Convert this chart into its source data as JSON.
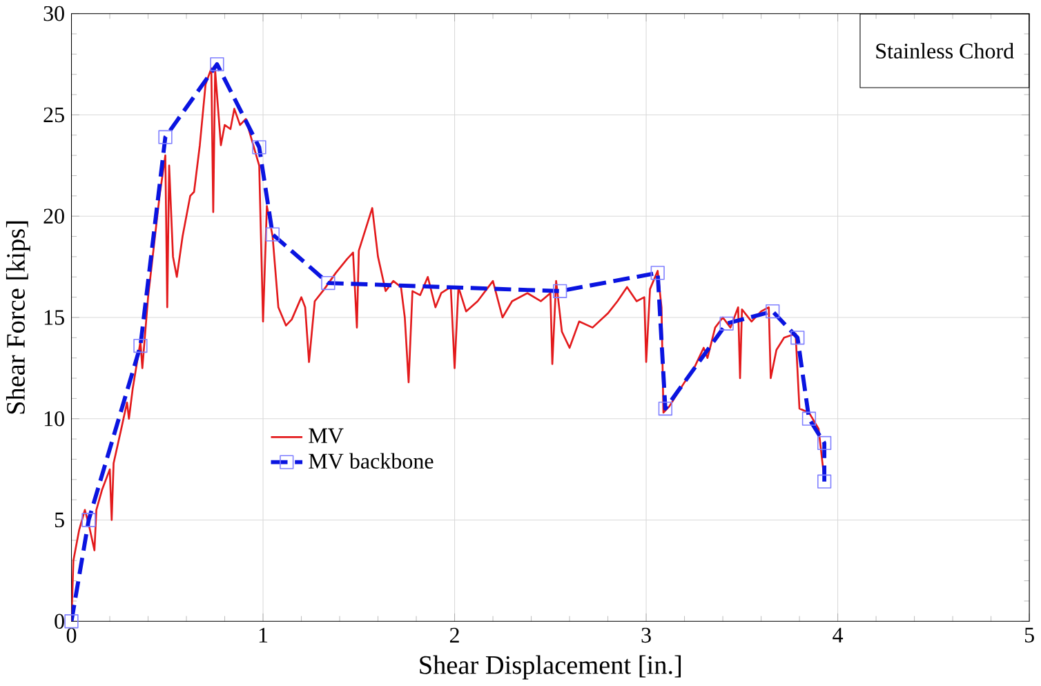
{
  "chart_data": {
    "type": "line",
    "xlabel": "Shear Displacement [in.]",
    "ylabel": "Shear Force [kips]",
    "xlim": [
      0,
      5
    ],
    "ylim": [
      0,
      30
    ],
    "xticks": [
      0,
      1,
      2,
      3,
      4,
      5
    ],
    "yticks": [
      0,
      5,
      10,
      15,
      20,
      25,
      30
    ],
    "grid": true,
    "legend": "left",
    "annotations": [
      "Stainless Chord"
    ],
    "series": [
      {
        "name": "MV",
        "color": "#e31a1c",
        "line_style": "solid",
        "marker": "none",
        "x": [
          0,
          0.01,
          0.04,
          0.07,
          0.09,
          0.12,
          0.13,
          0.16,
          0.2,
          0.21,
          0.22,
          0.26,
          0.29,
          0.3,
          0.32,
          0.36,
          0.37,
          0.4,
          0.43,
          0.46,
          0.49,
          0.5,
          0.51,
          0.53,
          0.55,
          0.58,
          0.62,
          0.64,
          0.67,
          0.7,
          0.73,
          0.74,
          0.75,
          0.78,
          0.8,
          0.83,
          0.85,
          0.88,
          0.91,
          0.94,
          0.98,
          1.0,
          1.02,
          1.05,
          1.08,
          1.12,
          1.15,
          1.2,
          1.22,
          1.24,
          1.27,
          1.32,
          1.38,
          1.44,
          1.47,
          1.49,
          1.5,
          1.54,
          1.57,
          1.6,
          1.64,
          1.68,
          1.72,
          1.74,
          1.76,
          1.78,
          1.82,
          1.86,
          1.9,
          1.93,
          1.98,
          2.0,
          2.02,
          2.06,
          2.12,
          2.2,
          2.25,
          2.3,
          2.38,
          2.45,
          2.5,
          2.51,
          2.53,
          2.56,
          2.6,
          2.65,
          2.72,
          2.8,
          2.85,
          2.9,
          2.95,
          2.99,
          3.0,
          3.02,
          3.06,
          3.08,
          3.09,
          3.12,
          3.16,
          3.2,
          3.25,
          3.3,
          3.32,
          3.36,
          3.4,
          3.44,
          3.48,
          3.49,
          3.5,
          3.55,
          3.6,
          3.64,
          3.65,
          3.68,
          3.72,
          3.78,
          3.8,
          3.85,
          3.9,
          3.93
        ],
        "values": [
          0,
          3,
          4.5,
          5.5,
          4.8,
          3.5,
          5.5,
          6.5,
          7.5,
          5,
          7.8,
          9.5,
          10.8,
          10,
          11.5,
          13.8,
          12.5,
          16,
          18.5,
          21,
          23,
          15.5,
          22.5,
          18,
          17,
          19,
          21,
          21.2,
          23.5,
          26.5,
          27.3,
          20.2,
          27.2,
          23.5,
          24.5,
          24.3,
          25.3,
          24.5,
          24.8,
          23.8,
          22.5,
          14.8,
          20.5,
          19,
          15.5,
          14.6,
          14.9,
          16,
          15.5,
          12.8,
          15.8,
          16.4,
          17.2,
          17.9,
          18.2,
          14.5,
          18.3,
          19.5,
          20.4,
          18,
          16.3,
          16.8,
          16.5,
          15,
          11.8,
          16.3,
          16.1,
          17,
          15.5,
          16.2,
          16.5,
          12.5,
          16.5,
          15.3,
          15.8,
          16.8,
          15,
          15.8,
          16.2,
          15.8,
          16.2,
          12.7,
          16.8,
          14.3,
          13.5,
          14.8,
          14.5,
          15.2,
          15.8,
          16.5,
          15.8,
          16,
          12.8,
          16.4,
          17.3,
          15.5,
          10.3,
          10.6,
          11.2,
          11.8,
          12.5,
          13.5,
          13,
          14.5,
          15,
          14.5,
          15.5,
          12,
          15.4,
          14.8,
          15.3,
          15.5,
          12,
          13.4,
          14,
          14.2,
          10.5,
          10.3,
          9.5,
          7
        ]
      },
      {
        "name": "MV backbone",
        "color": "#0a14e0",
        "line_style": "dashed",
        "marker": "square",
        "x": [
          0,
          0.09,
          0.36,
          0.49,
          0.76,
          0.98,
          1.05,
          1.34,
          2.55,
          3.06,
          3.1,
          3.42,
          3.66,
          3.79,
          3.85,
          3.93,
          3.93
        ],
        "values": [
          0,
          5,
          13.6,
          23.9,
          27.5,
          23.4,
          19.1,
          16.7,
          16.3,
          17.2,
          10.5,
          14.7,
          15.3,
          14,
          10,
          8.8,
          6.9
        ]
      }
    ]
  }
}
